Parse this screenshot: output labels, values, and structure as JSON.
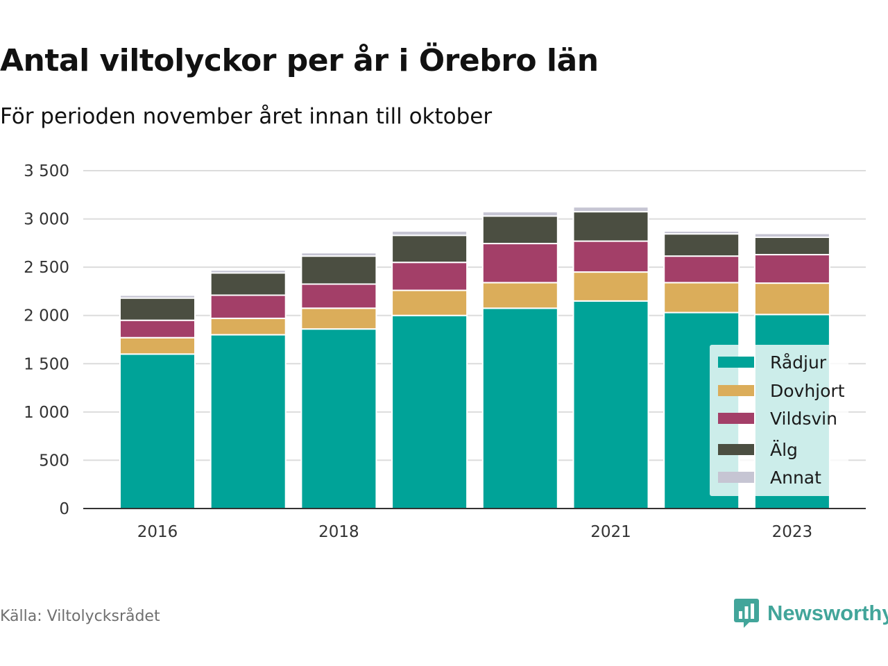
{
  "header": {
    "title": "Antal viltolyckor per år i Örebro län",
    "subtitle": "För perioden november året innan till oktober"
  },
  "footer": {
    "source": "Källa: Viltolycksrådet",
    "brand": "Newsworthy"
  },
  "icons": {
    "brand_logo": "bar-chart-speech-bubble-icon"
  },
  "chart_data": {
    "type": "bar",
    "stacked": true,
    "title": "Antal viltolyckor per år i Örebro län",
    "subtitle": "För perioden november året innan till oktober",
    "categories": [
      "2016",
      "2017",
      "2018",
      "2019",
      "2020",
      "2021",
      "2022",
      "2023"
    ],
    "x_tick_labels": [
      "2016",
      "",
      "2018",
      "",
      "",
      "2021",
      "",
      "2023"
    ],
    "ylim": [
      0,
      3500
    ],
    "y_ticks": [
      0,
      500,
      1000,
      1500,
      2000,
      2500,
      3000,
      3500
    ],
    "y_tick_labels": [
      "0",
      "500",
      "1 000",
      "1 500",
      "2 000",
      "2 500",
      "3 000",
      "3 500"
    ],
    "grid": true,
    "legend_position": "bottom-right",
    "series": [
      {
        "name": "Rådjur",
        "color": "#00a398",
        "values": [
          1600,
          1800,
          1860,
          2000,
          2075,
          2150,
          2030,
          2010
        ]
      },
      {
        "name": "Dovhjort",
        "color": "#dbad5a",
        "values": [
          170,
          170,
          215,
          260,
          265,
          300,
          310,
          325
        ]
      },
      {
        "name": "Vildsvin",
        "color": "#a33f68",
        "values": [
          180,
          240,
          250,
          290,
          405,
          320,
          275,
          295
        ]
      },
      {
        "name": "Älg",
        "color": "#4b4e41",
        "values": [
          230,
          230,
          290,
          280,
          285,
          305,
          230,
          180
        ]
      },
      {
        "name": "Annat",
        "color": "#c6c5d3",
        "values": [
          30,
          30,
          35,
          45,
          45,
          50,
          30,
          40
        ]
      }
    ]
  }
}
